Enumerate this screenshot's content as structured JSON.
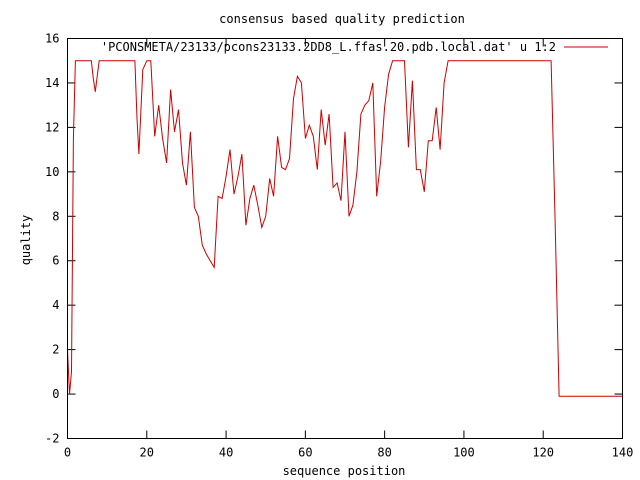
{
  "chart_data": {
    "type": "line",
    "title": "consensus based quality prediction",
    "xlabel": "sequence position",
    "ylabel": "quality",
    "xlim": [
      0,
      140
    ],
    "ylim": [
      -2,
      16
    ],
    "xticks": [
      0,
      20,
      40,
      60,
      80,
      100,
      120,
      140
    ],
    "yticks": [
      -2,
      0,
      2,
      4,
      6,
      8,
      10,
      12,
      14,
      16
    ],
    "grid": false,
    "legend_position": "top-right",
    "series": [
      {
        "name": "'PCONSMETA/23133/pcons23133.2DD8_L.ffas.20.pdb.local.dat' u 1:2",
        "color": "#cc0000",
        "x": [
          0,
          0.5,
          1,
          1.5,
          2,
          3,
          4,
          5,
          6,
          6.5,
          7,
          7.5,
          8,
          9,
          10,
          11,
          12,
          13,
          14,
          15,
          16,
          17,
          17.5,
          18,
          19,
          20,
          21,
          22,
          23,
          24,
          25,
          26,
          27,
          28,
          29,
          30,
          31,
          32,
          33,
          34,
          35,
          36,
          37,
          38,
          39,
          40,
          41,
          42,
          43,
          44,
          45,
          46,
          47,
          48,
          49,
          50,
          51,
          52,
          53,
          54,
          55,
          56,
          57,
          58,
          59,
          60,
          61,
          62,
          63,
          64,
          65,
          66,
          67,
          68,
          69,
          70,
          71,
          72,
          73,
          74,
          75,
          76,
          77,
          78,
          79,
          80,
          81,
          82,
          83,
          84,
          85,
          86,
          87,
          88,
          89,
          90,
          91,
          92,
          93,
          94,
          95,
          96,
          97,
          98,
          100,
          110,
          120,
          122,
          123,
          124,
          125,
          130,
          140
        ],
        "values": [
          2,
          0,
          1,
          11.5,
          15,
          15,
          15,
          15,
          15,
          14.2,
          13.6,
          14.3,
          15,
          15,
          15,
          15,
          15,
          15,
          15,
          15,
          15,
          15,
          12.5,
          10.8,
          14.6,
          15,
          15,
          11.6,
          13,
          11.5,
          10.4,
          13.7,
          11.8,
          12.8,
          10.4,
          9.4,
          11.8,
          8.4,
          8,
          6.7,
          6.3,
          6,
          5.7,
          8.9,
          8.8,
          9.8,
          11,
          9,
          9.8,
          10.8,
          7.6,
          8.8,
          9.4,
          8.5,
          7.5,
          8,
          9.7,
          8.9,
          11.6,
          10.2,
          10.1,
          10.6,
          13.3,
          14.3,
          14,
          11.5,
          12.1,
          11.6,
          10.1,
          12.8,
          11.2,
          12.6,
          9.3,
          9.5,
          8.7,
          11.8,
          8,
          8.5,
          10,
          12.6,
          13,
          13.2,
          14,
          8.9,
          10.5,
          12.9,
          14.4,
          15,
          15,
          15,
          15,
          11.1,
          14.1,
          10.1,
          10.1,
          9.1,
          11.4,
          11.4,
          12.9,
          11,
          14,
          15,
          15,
          15,
          15,
          15,
          15,
          15,
          7.8,
          -0.1,
          -0.1,
          -0.1,
          -0.1
        ]
      }
    ]
  }
}
